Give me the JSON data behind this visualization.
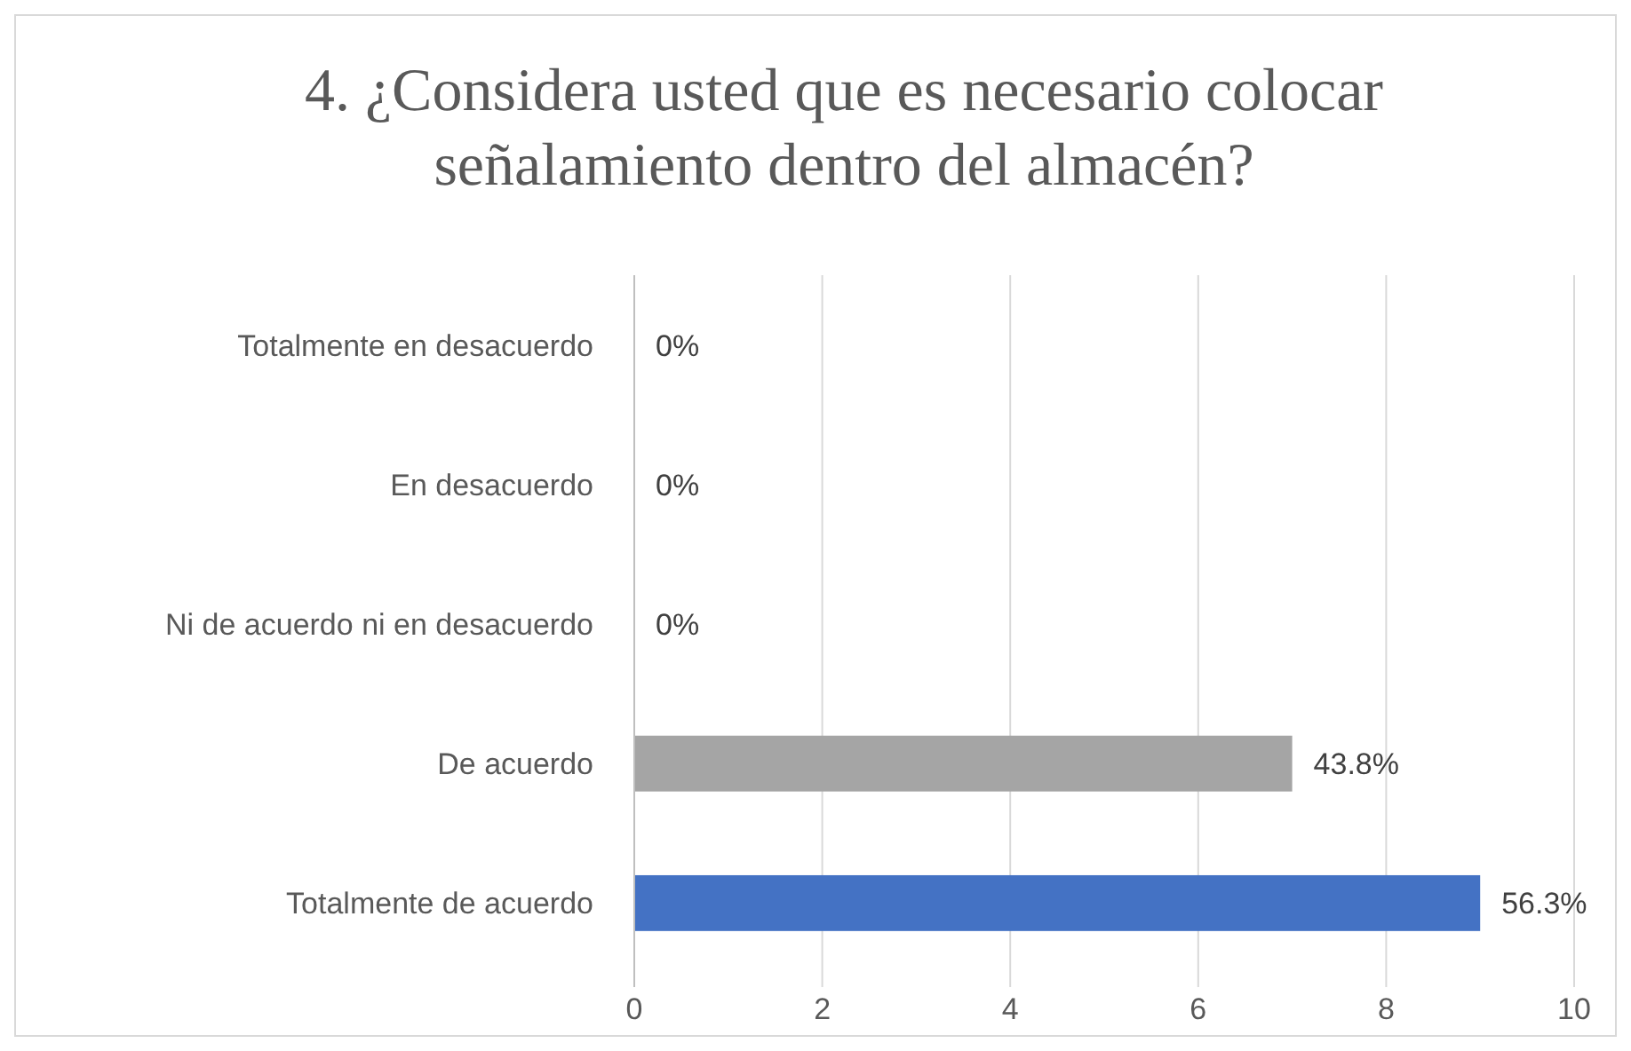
{
  "chart_data": {
    "type": "bar",
    "orientation": "horizontal",
    "title": "4. ¿Considera usted que es necesario colocar señalamiento dentro del almacén?",
    "categories": [
      "Totalmente en desacuerdo",
      "En desacuerdo",
      "Ni de acuerdo ni en desacuerdo",
      "De acuerdo",
      "Totalmente de acuerdo"
    ],
    "values": [
      0,
      0,
      0,
      7,
      9
    ],
    "colors": [
      "#a5a5a5",
      "#a5a5a5",
      "#a5a5a5",
      "#a5a5a5",
      "#4472c4"
    ],
    "annotations": [
      {
        "text": "0%",
        "x": 0,
        "y": "Totalmente en desacuerdo"
      },
      {
        "text": "0%",
        "x": 0,
        "y": "En desacuerdo"
      },
      {
        "text": "0%",
        "x": 0,
        "y": "Ni de acuerdo ni en desacuerdo"
      },
      {
        "text": "43.8%",
        "x": 7,
        "y": "De acuerdo"
      },
      {
        "text": "56.3%",
        "x": 9,
        "y": "Totalmente de acuerdo"
      }
    ],
    "xlim": [
      0,
      10
    ],
    "xticks": [
      0,
      2,
      4,
      6,
      8,
      10
    ],
    "grid": "x"
  }
}
